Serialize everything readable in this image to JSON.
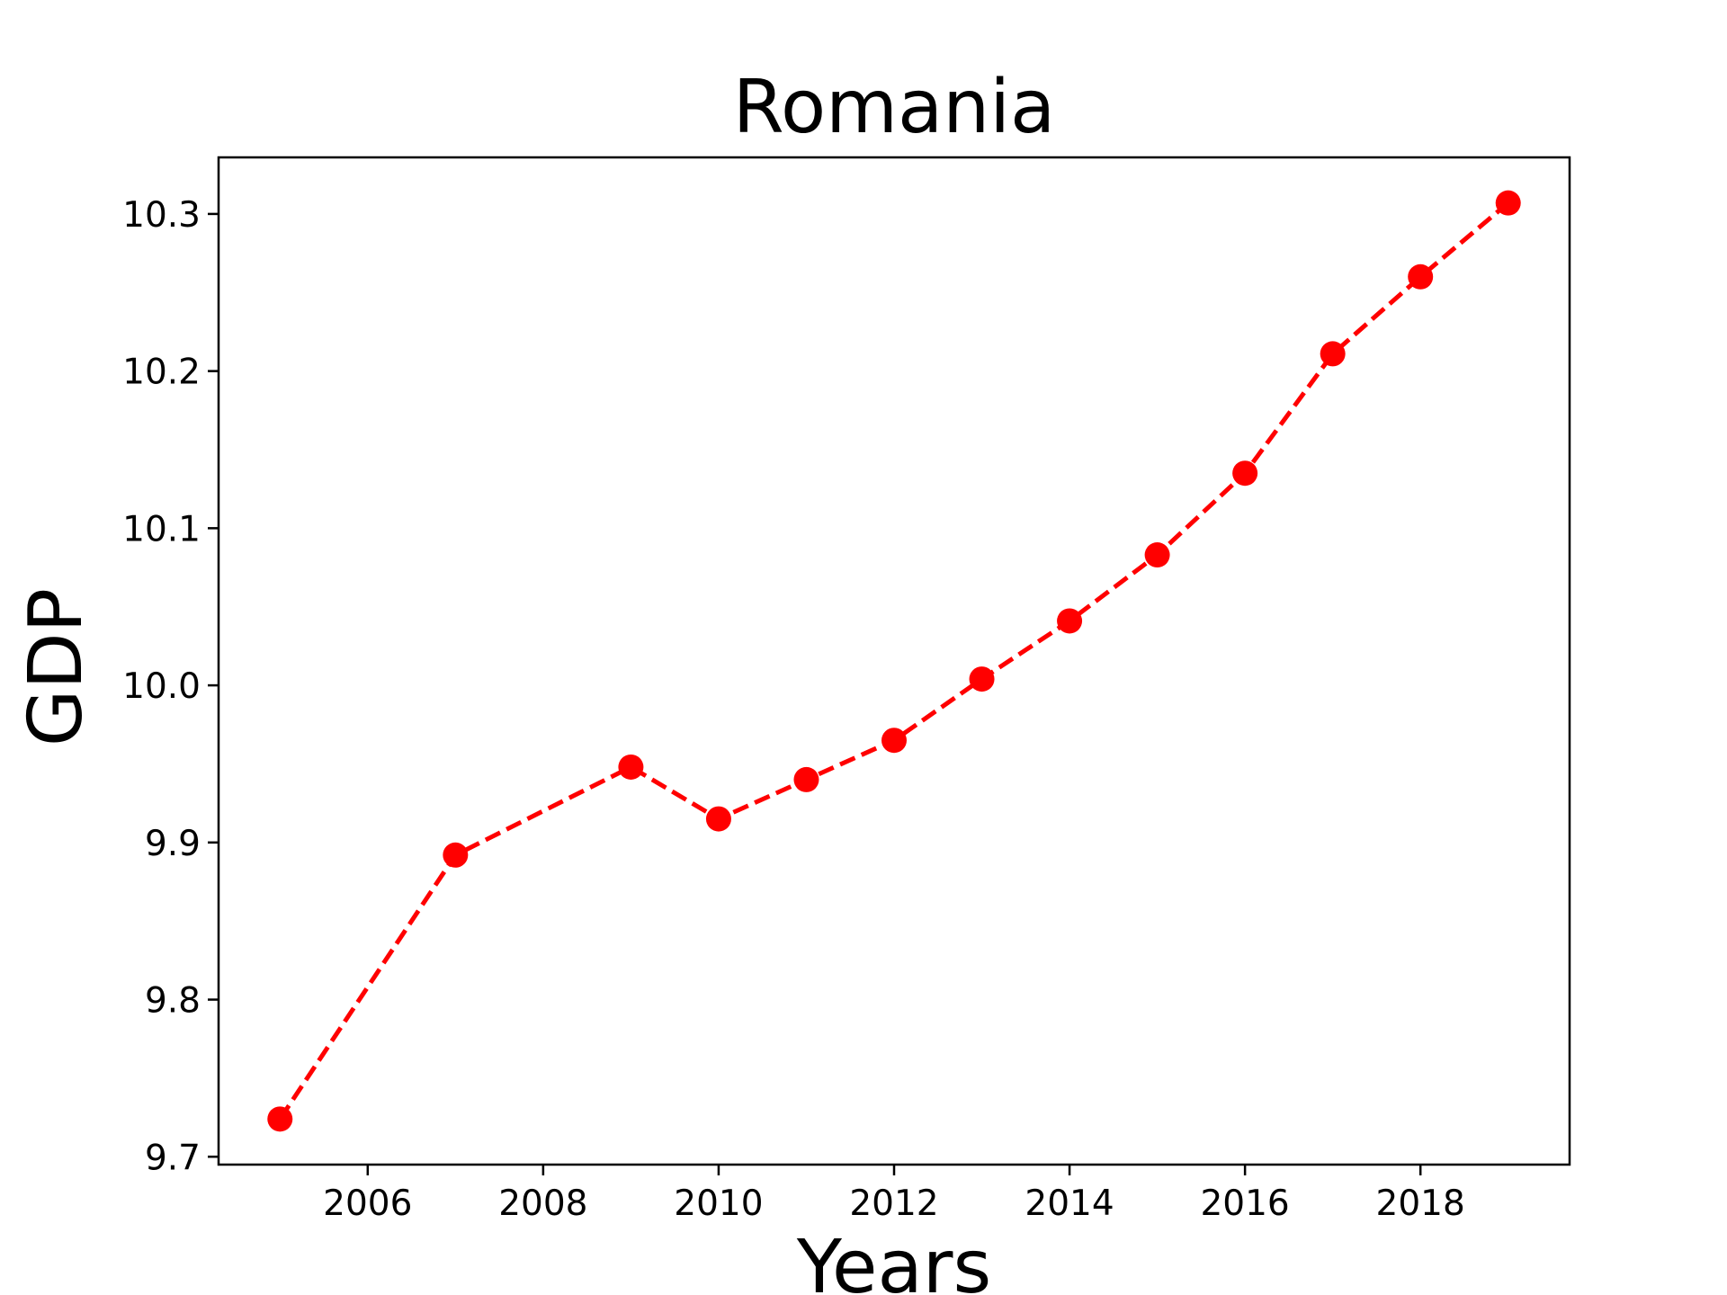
{
  "chart_data": {
    "type": "line",
    "title": "Romania",
    "xlabel": "Years",
    "ylabel": "GDP",
    "x": [
      2005,
      2007,
      2009,
      2010,
      2011,
      2012,
      2013,
      2014,
      2015,
      2016,
      2017,
      2018,
      2019
    ],
    "series": [
      {
        "values": [
          9.724,
          9.892,
          9.948,
          9.915,
          9.94,
          9.965,
          10.004,
          10.041,
          10.083,
          10.135,
          10.211,
          10.26,
          10.307
        ],
        "color": "#ff0000",
        "line_style": "dashed",
        "marker": "circle"
      }
    ],
    "xlim": [
      2004.3,
      2019.7
    ],
    "ylim": [
      9.695,
      10.336
    ],
    "xticks": [
      2006,
      2008,
      2010,
      2012,
      2014,
      2016,
      2018
    ],
    "yticks": [
      9.7,
      9.8,
      9.9,
      10.0,
      10.1,
      10.2,
      10.3
    ],
    "ytick_labels": [
      "9.7",
      "9.8",
      "9.9",
      "10.0",
      "10.1",
      "10.2",
      "10.3"
    ],
    "grid": false,
    "legend": "none"
  }
}
